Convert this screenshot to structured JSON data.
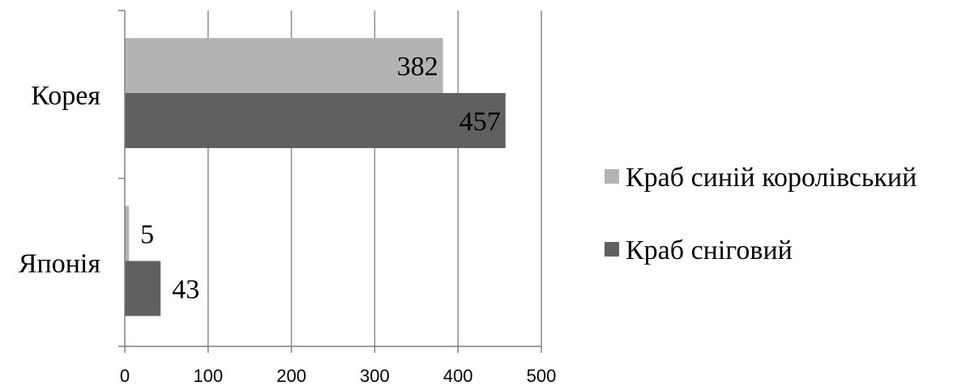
{
  "chart_data": {
    "type": "bar",
    "orientation": "horizontal",
    "categories": [
      "Корея",
      "Японія"
    ],
    "series": [
      {
        "name": "Краб синій королівський",
        "values": [
          382,
          5
        ],
        "color": "#b3b3b3"
      },
      {
        "name": "Краб сніговий",
        "values": [
          457,
          43
        ],
        "color": "#606060"
      }
    ],
    "xlim": [
      0,
      500
    ],
    "xticks": [
      0,
      100,
      200,
      300,
      400,
      500
    ],
    "grid": true,
    "legend_position": "right",
    "data_labels": true
  }
}
